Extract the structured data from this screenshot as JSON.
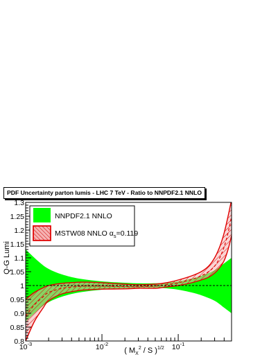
{
  "title": "PDF Uncertainty parton lumis - LHC 7 TeV - Ratio to NNPDF2.1 NNLO",
  "colors": {
    "nnpdf_band": "#00ff00",
    "mstw_line": "#e00000",
    "mstw_fill": "#f5b3b3",
    "hatch": "#d00000"
  },
  "chart_data": {
    "type": "line",
    "title": "PDF Uncertainty parton lumis - LHC 7 TeV - Ratio to NNPDF2.1 NNLO",
    "xlabel": "( M",
    "xlabel_x": "X",
    "xlabel_sup": "2",
    "xlabel_tail": " / S )",
    "xlabel_pow": "1/2",
    "ylabel": "Q-G Lumi",
    "xscale": "log",
    "xlim": [
      0.001,
      0.5
    ],
    "ylim": [
      0.8,
      1.3
    ],
    "xticks": [
      {
        "value": 0.001,
        "base": "10",
        "exp": "-3"
      },
      {
        "value": 0.01,
        "base": "10",
        "exp": "-2"
      },
      {
        "value": 0.1,
        "base": "10",
        "exp": "-1"
      }
    ],
    "yticks": [
      "0.8",
      "0.85",
      "0.9",
      "0.95",
      "1",
      "1.05",
      "1.1",
      "1.15",
      "1.2",
      "1.25",
      "1.3"
    ],
    "reference_line": 1.0,
    "legend": {
      "placement": "top-left",
      "entries": [
        {
          "label": "NNPDF2.1 NNLO",
          "style": "solid-green"
        },
        {
          "label_main": "MSTW08 NNLO α",
          "label_sub": "s",
          "label_tail": "=0.119",
          "style": "red-hatched"
        }
      ]
    },
    "series": [
      {
        "name": "NNPDF2.1 NNLO",
        "kind": "band",
        "x": [
          0.001,
          0.0015,
          0.002,
          0.003,
          0.005,
          0.01,
          0.02,
          0.03,
          0.05,
          0.07,
          0.1,
          0.15,
          0.2,
          0.3,
          0.4,
          0.5
        ],
        "upper": [
          1.13,
          1.085,
          1.06,
          1.04,
          1.025,
          1.015,
          1.01,
          1.008,
          1.008,
          1.01,
          1.015,
          1.025,
          1.035,
          1.055,
          1.08,
          1.1
        ],
        "lower": [
          0.87,
          0.915,
          0.94,
          0.96,
          0.975,
          0.985,
          0.99,
          0.992,
          0.992,
          0.99,
          0.985,
          0.975,
          0.965,
          0.945,
          0.92,
          0.9
        ]
      },
      {
        "name": "MSTW08 NNLO αs=0.119",
        "kind": "band",
        "x": [
          0.001,
          0.0013,
          0.0017,
          0.002,
          0.003,
          0.005,
          0.007,
          0.01,
          0.02,
          0.03,
          0.05,
          0.07,
          0.1,
          0.15,
          0.2,
          0.25,
          0.3,
          0.35,
          0.4,
          0.45,
          0.5
        ],
        "central": [
          0.89,
          0.93,
          0.96,
          0.975,
          0.99,
          0.997,
          0.998,
          0.998,
          0.996,
          0.996,
          0.998,
          1.003,
          1.01,
          1.022,
          1.035,
          1.05,
          1.07,
          1.1,
          1.14,
          1.19,
          1.25
        ],
        "upper": [
          0.95,
          0.975,
          0.992,
          1.0,
          1.008,
          1.012,
          1.012,
          1.01,
          1.005,
          1.003,
          1.005,
          1.01,
          1.02,
          1.035,
          1.05,
          1.07,
          1.1,
          1.14,
          1.19,
          1.25,
          1.31
        ],
        "lower": [
          0.8,
          0.87,
          0.92,
          0.945,
          0.97,
          0.982,
          0.985,
          0.987,
          0.988,
          0.99,
          0.99,
          0.995,
          1.0,
          1.01,
          1.02,
          1.03,
          1.045,
          1.065,
          1.09,
          1.13,
          1.18
        ]
      }
    ]
  }
}
